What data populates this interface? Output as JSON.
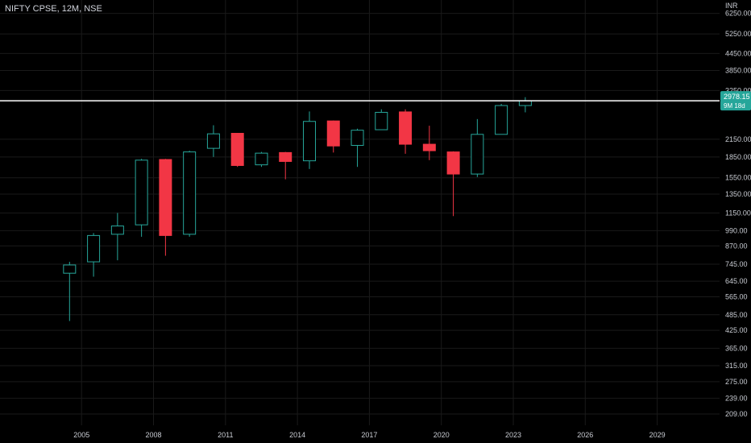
{
  "chart_data": {
    "type": "candlestick",
    "title": "NIFTY CPSE, 12M, NSE",
    "currency": "INR",
    "y_scale": "log",
    "ylim": [
      190,
      7000
    ],
    "xlim": [
      2001.6,
      2031.6
    ],
    "y_ticks": [
      6250,
      5250,
      4450,
      3850,
      3250,
      2150,
      1850,
      1550,
      1350,
      1150,
      990,
      870,
      745,
      645,
      565,
      485,
      425,
      365,
      315,
      275,
      239,
      209
    ],
    "y_tick_labels": [
      "6250.00",
      "5250.00",
      "4450.00",
      "3850.00",
      "3250.00",
      "2150.00",
      "1850.00",
      "1550.00",
      "1350.00",
      "1150.00",
      "990.00",
      "870.00",
      "745.00",
      "645.00",
      "565.00",
      "485.00",
      "425.00",
      "365.00",
      "315.00",
      "275.00",
      "239.00",
      "209.00"
    ],
    "x_ticks": [
      2005,
      2008,
      2011,
      2014,
      2017,
      2020,
      2023,
      2026,
      2029
    ],
    "x_tick_labels": [
      "2005",
      "2008",
      "2011",
      "2014",
      "2017",
      "2020",
      "2023",
      "2026",
      "2029"
    ],
    "last_price": 2978.15,
    "last_price_label": "2978.15",
    "countdown_label": "9M 18d",
    "colors": {
      "up": "#26a69a",
      "down": "#f23645",
      "background": "#000000",
      "price_line": "#ffffff",
      "tag": "#26a69a"
    },
    "candles": [
      {
        "year": 2004,
        "open": 690,
        "high": 760,
        "low": 460,
        "close": 740
      },
      {
        "year": 2005,
        "open": 760,
        "high": 970,
        "low": 670,
        "close": 950
      },
      {
        "year": 2006,
        "open": 960,
        "high": 1150,
        "low": 770,
        "close": 1030
      },
      {
        "year": 2007,
        "open": 1040,
        "high": 1820,
        "low": 940,
        "close": 1800
      },
      {
        "year": 2008,
        "open": 1810,
        "high": 1820,
        "low": 800,
        "close": 950
      },
      {
        "year": 2009,
        "open": 960,
        "high": 1950,
        "low": 940,
        "close": 1930
      },
      {
        "year": 2010,
        "open": 1990,
        "high": 2420,
        "low": 1850,
        "close": 2250
      },
      {
        "year": 2011,
        "open": 2260,
        "high": 2260,
        "low": 1700,
        "close": 1720
      },
      {
        "year": 2012,
        "open": 1730,
        "high": 1930,
        "low": 1700,
        "close": 1910
      },
      {
        "year": 2013,
        "open": 1920,
        "high": 1930,
        "low": 1530,
        "close": 1780
      },
      {
        "year": 2014,
        "open": 1790,
        "high": 2720,
        "low": 1670,
        "close": 2500
      },
      {
        "year": 2015,
        "open": 2510,
        "high": 2520,
        "low": 1920,
        "close": 2030
      },
      {
        "year": 2016,
        "open": 2040,
        "high": 2350,
        "low": 1700,
        "close": 2320
      },
      {
        "year": 2017,
        "open": 2330,
        "high": 2770,
        "low": 2330,
        "close": 2700
      },
      {
        "year": 2018,
        "open": 2710,
        "high": 2770,
        "low": 1900,
        "close": 2060
      },
      {
        "year": 2019,
        "open": 2060,
        "high": 2410,
        "low": 1800,
        "close": 1950
      },
      {
        "year": 2020,
        "open": 1930,
        "high": 1940,
        "low": 1120,
        "close": 1600
      },
      {
        "year": 2021,
        "open": 1600,
        "high": 2550,
        "low": 1560,
        "close": 2240
      },
      {
        "year": 2022,
        "open": 2240,
        "high": 2900,
        "low": 2240,
        "close": 2860
      },
      {
        "year": 2023,
        "open": 2860,
        "high": 3070,
        "low": 2700,
        "close": 2978
      }
    ]
  }
}
